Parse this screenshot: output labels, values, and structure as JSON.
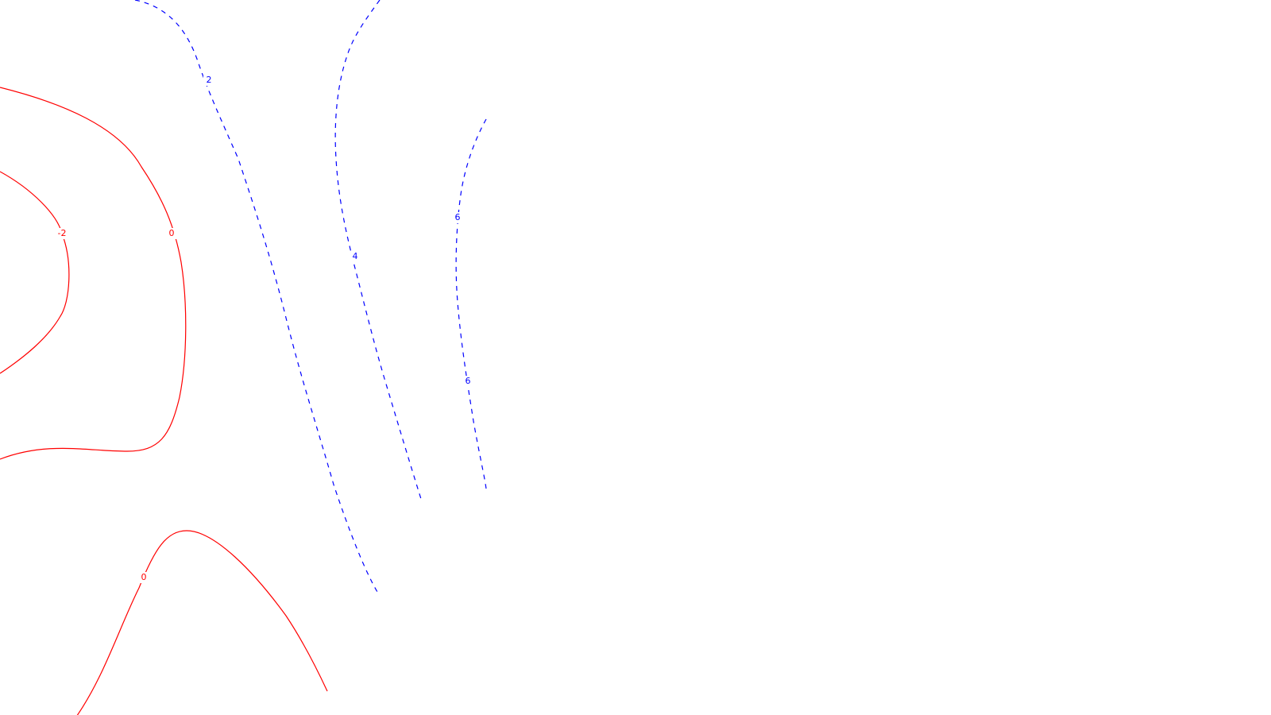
{
  "chart_data": {
    "type": "contour",
    "title": "",
    "xlabel": "",
    "ylabel": "",
    "grid": false,
    "legend": "none",
    "colors": {
      "negative_or_zero": "#ff0000",
      "positive": "#0000ff"
    },
    "levels": [
      {
        "level": -2,
        "label": "-2",
        "color": "#ff0000",
        "dashed": false
      },
      {
        "level": 0,
        "label": "0",
        "color": "#ff0000",
        "dashed": false
      },
      {
        "level": 0,
        "label": "0",
        "color": "#ff0000",
        "dashed": false
      },
      {
        "level": 2,
        "label": "2",
        "color": "#0000ff",
        "dashed": true
      },
      {
        "level": 4,
        "label": "4",
        "color": "#0000ff",
        "dashed": true
      },
      {
        "level": 6,
        "label": "6",
        "color": "#0000ff",
        "dashed": true
      },
      {
        "level": 6,
        "label": "6",
        "color": "#0000ff",
        "dashed": true
      }
    ]
  }
}
